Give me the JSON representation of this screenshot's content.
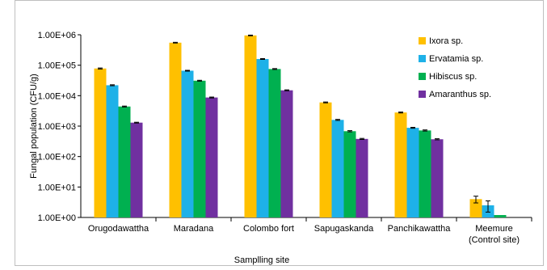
{
  "chart_data": {
    "type": "bar",
    "log_scale": true,
    "title": "",
    "xlabel": "Samplling site",
    "ylabel": "Fungal population (CFU/g)",
    "ylim": [
      1,
      1000000
    ],
    "y_ticks": [
      1,
      10,
      100,
      1000,
      10000,
      100000,
      1000000
    ],
    "y_tick_labels": [
      "1.00E+00",
      "1.00E+01",
      "1.00E+02",
      "1.00E+03",
      "1.00E+04",
      "1.00E+05",
      "1.00E+06"
    ],
    "grid": false,
    "legend_position": "top-right",
    "categories": [
      [
        "Orugodawattha"
      ],
      [
        "Maradana"
      ],
      [
        "Colombo fort"
      ],
      [
        "Sapugaskanda"
      ],
      [
        "Panchikawattha"
      ],
      [
        "Meemure",
        "(Control site)"
      ]
    ],
    "series": [
      {
        "name": "Ixora sp.",
        "color": "#FFC000",
        "values": [
          78000,
          550000,
          950000,
          6000,
          2800,
          4
        ],
        "errors": [
          3000,
          15000,
          25000,
          200,
          100,
          1
        ]
      },
      {
        "name": "Ervatamia sp.",
        "color": "#1EB1E8",
        "values": [
          22000,
          66000,
          160000,
          1600,
          880,
          2.5
        ],
        "errors": [
          800,
          2000,
          5000,
          60,
          30,
          1
        ]
      },
      {
        "name": "Hibiscus sp.",
        "color": "#00B050",
        "values": [
          4400,
          31000,
          75000,
          680,
          720,
          1.2
        ],
        "errors": [
          150,
          1000,
          2500,
          30,
          30,
          0
        ]
      },
      {
        "name": "Amaranthus sp.",
        "color": "#7030A0",
        "values": [
          1300,
          8700,
          15000,
          380,
          370,
          1
        ],
        "errors": [
          40,
          300,
          500,
          15,
          15,
          0
        ]
      }
    ]
  }
}
